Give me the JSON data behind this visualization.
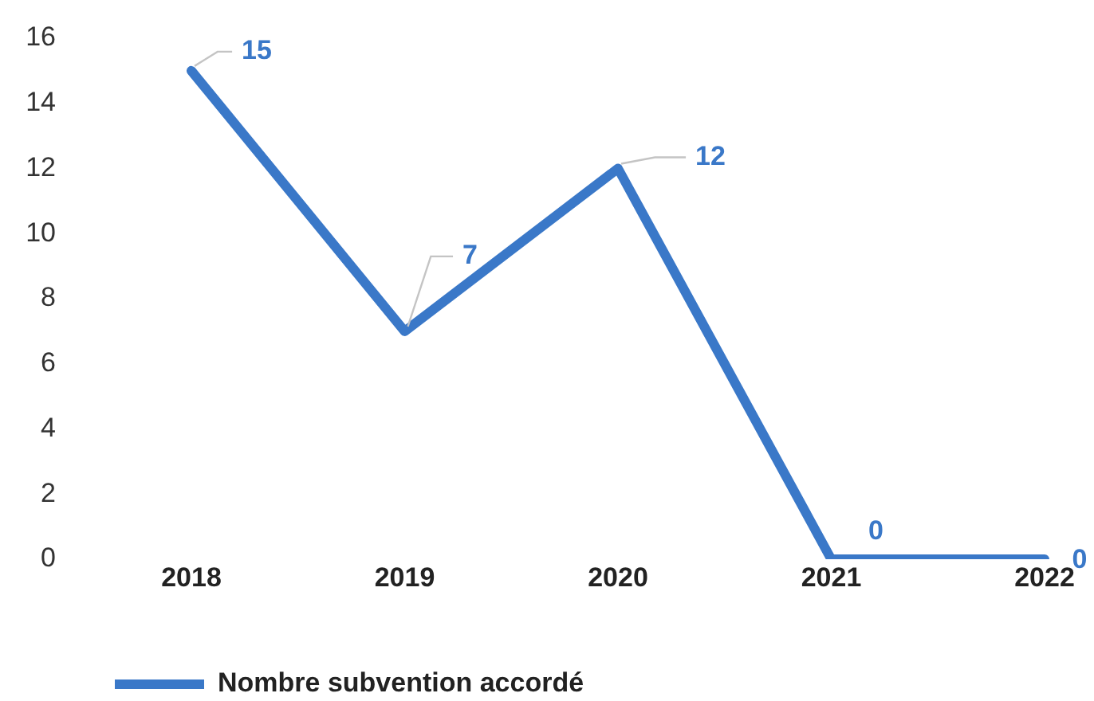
{
  "chart_data": {
    "type": "line",
    "categories": [
      "2018",
      "2019",
      "2020",
      "2021",
      "2022"
    ],
    "series": [
      {
        "name": "Nombre subvention accordé",
        "color": "#3a78c8",
        "values": [
          15,
          7,
          12,
          0,
          0
        ]
      }
    ],
    "ylim": [
      0,
      16
    ],
    "yticks": [
      0,
      2,
      4,
      6,
      8,
      10,
      12,
      14,
      16
    ],
    "grid": false,
    "legend": "bottom left",
    "data_labels": true,
    "marker": "none",
    "line_style": "solid"
  }
}
